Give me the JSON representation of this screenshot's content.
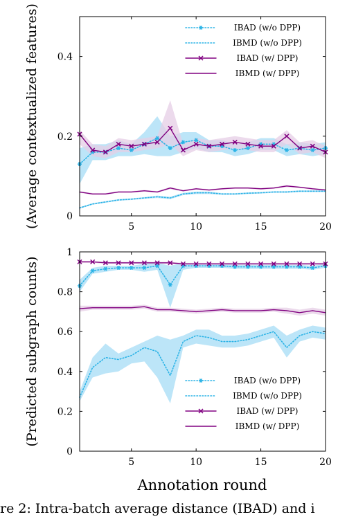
{
  "colors": {
    "cyan": "#2bb3e6",
    "purple": "#800080",
    "cyan_band": "#a6dcf5",
    "purple_band": "#e6cde6"
  },
  "chart_data": [
    {
      "type": "line",
      "ylabel": "(Average contextualized features)",
      "xlabel": "",
      "xlim": [
        1,
        20
      ],
      "ylim": [
        0,
        0.5
      ],
      "xticks": [
        5,
        10,
        15,
        20
      ],
      "xtick_labels": [
        "5",
        "10",
        "15",
        "20"
      ],
      "yticks": [
        0,
        0.2,
        0.4
      ],
      "ytick_labels": [
        "0",
        "0.2",
        "0.4"
      ],
      "grid": false,
      "legend_position": "top-right",
      "x": [
        1,
        2,
        3,
        4,
        5,
        6,
        7,
        8,
        9,
        10,
        11,
        12,
        13,
        14,
        15,
        16,
        17,
        18,
        19,
        20
      ],
      "series": [
        {
          "name": "IBAD (w/o DPP)",
          "color_key": "cyan",
          "style": "dotted-marker",
          "values": [
            0.13,
            0.16,
            0.16,
            0.17,
            0.165,
            0.18,
            0.195,
            0.17,
            0.185,
            0.19,
            0.175,
            0.175,
            0.165,
            0.17,
            0.18,
            0.18,
            0.165,
            0.17,
            0.165,
            0.17
          ],
          "lower": [
            0.08,
            0.14,
            0.14,
            0.15,
            0.15,
            0.155,
            0.15,
            0.15,
            0.16,
            0.17,
            0.16,
            0.16,
            0.15,
            0.155,
            0.165,
            0.165,
            0.15,
            0.155,
            0.15,
            0.155
          ],
          "upper": [
            0.17,
            0.18,
            0.18,
            0.19,
            0.18,
            0.21,
            0.25,
            0.2,
            0.21,
            0.21,
            0.19,
            0.19,
            0.18,
            0.185,
            0.195,
            0.195,
            0.18,
            0.185,
            0.18,
            0.185
          ]
        },
        {
          "name": "IBMD (w/o DPP)",
          "color_key": "cyan",
          "style": "dotted",
          "values": [
            0.02,
            0.03,
            0.035,
            0.04,
            0.042,
            0.045,
            0.048,
            0.045,
            0.055,
            0.058,
            0.058,
            0.055,
            0.055,
            0.057,
            0.058,
            0.06,
            0.06,
            0.062,
            0.062,
            0.062
          ],
          "lower": [
            0.018,
            0.028,
            0.033,
            0.038,
            0.04,
            0.043,
            0.045,
            0.042,
            0.052,
            0.055,
            0.055,
            0.053,
            0.053,
            0.055,
            0.056,
            0.058,
            0.058,
            0.06,
            0.06,
            0.06
          ],
          "upper": [
            0.022,
            0.032,
            0.037,
            0.042,
            0.044,
            0.047,
            0.051,
            0.048,
            0.058,
            0.061,
            0.061,
            0.057,
            0.057,
            0.059,
            0.06,
            0.062,
            0.062,
            0.064,
            0.064,
            0.064
          ]
        },
        {
          "name": "IBAD (w/ DPP)",
          "color_key": "purple",
          "style": "solid-marker",
          "values": [
            0.205,
            0.165,
            0.16,
            0.18,
            0.175,
            0.18,
            0.185,
            0.22,
            0.165,
            0.18,
            0.175,
            0.18,
            0.185,
            0.18,
            0.175,
            0.175,
            0.2,
            0.17,
            0.175,
            0.16
          ],
          "lower": [
            0.18,
            0.15,
            0.145,
            0.16,
            0.16,
            0.165,
            0.17,
            0.18,
            0.15,
            0.165,
            0.16,
            0.165,
            0.17,
            0.165,
            0.16,
            0.16,
            0.18,
            0.155,
            0.16,
            0.145
          ],
          "upper": [
            0.215,
            0.18,
            0.175,
            0.195,
            0.19,
            0.195,
            0.2,
            0.29,
            0.18,
            0.195,
            0.19,
            0.195,
            0.2,
            0.195,
            0.19,
            0.19,
            0.215,
            0.185,
            0.19,
            0.175
          ]
        },
        {
          "name": "IBMD (w/ DPP)",
          "color_key": "purple",
          "style": "solid",
          "values": [
            0.06,
            0.055,
            0.055,
            0.06,
            0.06,
            0.063,
            0.06,
            0.07,
            0.063,
            0.068,
            0.065,
            0.068,
            0.07,
            0.07,
            0.068,
            0.07,
            0.075,
            0.072,
            0.068,
            0.065
          ],
          "lower": [
            0.058,
            0.053,
            0.053,
            0.058,
            0.058,
            0.061,
            0.058,
            0.067,
            0.061,
            0.066,
            0.063,
            0.066,
            0.068,
            0.068,
            0.066,
            0.068,
            0.072,
            0.07,
            0.066,
            0.063
          ],
          "upper": [
            0.062,
            0.057,
            0.057,
            0.062,
            0.062,
            0.065,
            0.062,
            0.073,
            0.065,
            0.07,
            0.067,
            0.07,
            0.072,
            0.072,
            0.07,
            0.072,
            0.078,
            0.074,
            0.07,
            0.067
          ]
        }
      ]
    },
    {
      "type": "line",
      "ylabel": "(Predicted subgraph counts)",
      "xlabel": "Annotation round",
      "xlim": [
        1,
        20
      ],
      "ylim": [
        0,
        1
      ],
      "xticks": [
        5,
        10,
        15,
        20
      ],
      "xtick_labels": [
        "5",
        "10",
        "15",
        "20"
      ],
      "yticks": [
        0,
        0.2,
        0.4,
        0.6,
        0.8,
        1
      ],
      "ytick_labels": [
        "0",
        "0.2",
        "0.4",
        "0.6",
        "0.8",
        "1"
      ],
      "grid": false,
      "legend_position": "bottom-right",
      "x": [
        1,
        2,
        3,
        4,
        5,
        6,
        7,
        8,
        9,
        10,
        11,
        12,
        13,
        14,
        15,
        16,
        17,
        18,
        19,
        20
      ],
      "series": [
        {
          "name": "IBAD (w/o DPP)",
          "color_key": "cyan",
          "style": "dotted-marker",
          "values": [
            0.83,
            0.905,
            0.915,
            0.92,
            0.92,
            0.92,
            0.93,
            0.835,
            0.93,
            0.93,
            0.93,
            0.93,
            0.925,
            0.925,
            0.925,
            0.925,
            0.925,
            0.925,
            0.92,
            0.93
          ],
          "lower": [
            0.8,
            0.89,
            0.9,
            0.91,
            0.91,
            0.9,
            0.91,
            0.72,
            0.91,
            0.92,
            0.92,
            0.92,
            0.915,
            0.915,
            0.915,
            0.915,
            0.915,
            0.915,
            0.91,
            0.92
          ],
          "upper": [
            0.86,
            0.92,
            0.93,
            0.93,
            0.93,
            0.94,
            0.945,
            0.93,
            0.945,
            0.94,
            0.94,
            0.94,
            0.935,
            0.935,
            0.935,
            0.935,
            0.935,
            0.935,
            0.93,
            0.94
          ]
        },
        {
          "name": "IBMD (w/o DPP)",
          "color_key": "cyan",
          "style": "dotted",
          "values": [
            0.27,
            0.42,
            0.47,
            0.46,
            0.48,
            0.52,
            0.5,
            0.38,
            0.55,
            0.58,
            0.57,
            0.55,
            0.55,
            0.56,
            0.58,
            0.6,
            0.52,
            0.58,
            0.6,
            0.59
          ],
          "lower": [
            0.25,
            0.37,
            0.39,
            0.4,
            0.44,
            0.45,
            0.37,
            0.24,
            0.52,
            0.54,
            0.53,
            0.52,
            0.52,
            0.53,
            0.55,
            0.57,
            0.47,
            0.55,
            0.57,
            0.56
          ],
          "upper": [
            0.3,
            0.47,
            0.54,
            0.49,
            0.52,
            0.55,
            0.58,
            0.56,
            0.58,
            0.61,
            0.61,
            0.58,
            0.58,
            0.59,
            0.61,
            0.63,
            0.58,
            0.61,
            0.63,
            0.62
          ]
        },
        {
          "name": "IBAD (w/ DPP)",
          "color_key": "purple",
          "style": "solid-marker",
          "values": [
            0.95,
            0.95,
            0.945,
            0.945,
            0.945,
            0.945,
            0.945,
            0.945,
            0.94,
            0.94,
            0.94,
            0.94,
            0.94,
            0.94,
            0.94,
            0.94,
            0.94,
            0.94,
            0.94,
            0.94
          ],
          "lower": [
            0.945,
            0.945,
            0.94,
            0.94,
            0.94,
            0.94,
            0.94,
            0.94,
            0.935,
            0.935,
            0.935,
            0.935,
            0.935,
            0.935,
            0.935,
            0.935,
            0.935,
            0.935,
            0.935,
            0.935
          ],
          "upper": [
            0.955,
            0.955,
            0.95,
            0.95,
            0.95,
            0.95,
            0.95,
            0.95,
            0.945,
            0.945,
            0.945,
            0.945,
            0.945,
            0.945,
            0.945,
            0.945,
            0.945,
            0.945,
            0.945,
            0.945
          ]
        },
        {
          "name": "IBMD (w/ DPP)",
          "color_key": "purple",
          "style": "solid",
          "values": [
            0.715,
            0.72,
            0.72,
            0.72,
            0.72,
            0.725,
            0.71,
            0.71,
            0.705,
            0.7,
            0.705,
            0.71,
            0.705,
            0.705,
            0.705,
            0.71,
            0.705,
            0.695,
            0.705,
            0.695
          ],
          "lower": [
            0.7,
            0.71,
            0.71,
            0.71,
            0.71,
            0.715,
            0.7,
            0.7,
            0.695,
            0.69,
            0.695,
            0.7,
            0.695,
            0.695,
            0.695,
            0.7,
            0.69,
            0.68,
            0.69,
            0.68
          ],
          "upper": [
            0.73,
            0.73,
            0.73,
            0.73,
            0.73,
            0.735,
            0.72,
            0.72,
            0.715,
            0.71,
            0.715,
            0.72,
            0.715,
            0.715,
            0.715,
            0.72,
            0.72,
            0.71,
            0.72,
            0.71
          ]
        }
      ]
    }
  ],
  "caption_fragment": "re 2:  Intra-batch average distance (IBAD) and i"
}
